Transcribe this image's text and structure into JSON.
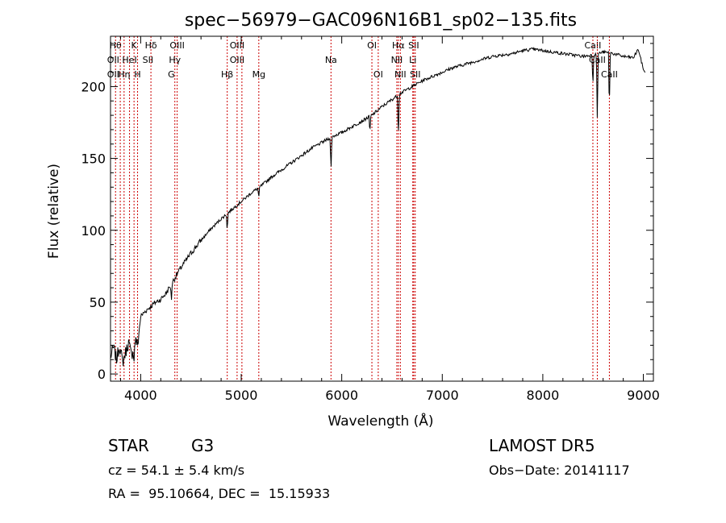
{
  "chart_data": {
    "type": "line",
    "title": "spec−56979−GAC096N16B1_sp02−135.fits",
    "xlabel": "Wavelength (Å)",
    "ylabel": "Flux (relative)",
    "xlim": [
      3700,
      9100
    ],
    "ylim": [
      -5,
      235
    ],
    "x_ticks": [
      4000,
      5000,
      6000,
      7000,
      8000,
      9000
    ],
    "y_ticks": [
      0,
      50,
      100,
      150,
      200
    ],
    "grid": false,
    "line_color": "#000000",
    "marker_color": "#cc0000",
    "series": [
      {
        "x": [
          3700,
          3730,
          3760,
          3790,
          3820,
          3850,
          3880,
          3910,
          3940,
          3970,
          4000,
          4050,
          4100,
          4150,
          4200,
          4250,
          4300,
          4350,
          4400,
          4500,
          4600,
          4700,
          4800,
          4900,
          5000,
          5100,
          5200,
          5300,
          5400,
          5500,
          5600,
          5700,
          5800,
          5900,
          6000,
          6100,
          6200,
          6300,
          6400,
          6500,
          6600,
          6700,
          6800,
          6900,
          7000,
          7100,
          7200,
          7300,
          7400,
          7500,
          7600,
          7700,
          7800,
          7900,
          8000,
          8100,
          8200,
          8300,
          8400,
          8500,
          8600,
          8700,
          8800,
          8900,
          8950,
          9000,
          9020
        ],
        "y": [
          12,
          18,
          10,
          20,
          8,
          15,
          22,
          12,
          25,
          20,
          40,
          44,
          47,
          50,
          52,
          56,
          62,
          68,
          74,
          84,
          93,
          101,
          108,
          114,
          120,
          126,
          131,
          137,
          142,
          147,
          152,
          157,
          161,
          165,
          168,
          172,
          176,
          180,
          186,
          191,
          196,
          200,
          204,
          207,
          210,
          213,
          215,
          217,
          219,
          221,
          222,
          223,
          225,
          226,
          225,
          224,
          223,
          222,
          221,
          222,
          224,
          223,
          221,
          220,
          226,
          212,
          210
        ]
      }
    ],
    "lines": [
      {
        "wavelength": 3750,
        "label": "Hθ",
        "row": 0
      },
      {
        "wavelength": 3797,
        "label": "",
        "row": 0
      },
      {
        "wavelength": 3835,
        "label": "",
        "row": 0
      },
      {
        "wavelength": 3889,
        "label": "",
        "row": 0
      },
      {
        "wavelength": 3934,
        "label": "K",
        "row": 0
      },
      {
        "wavelength": 3969,
        "label": "",
        "row": 0
      },
      {
        "wavelength": 4102,
        "label": "Hδ",
        "row": 0
      },
      {
        "wavelength": 4340,
        "label": "",
        "row": 0
      },
      {
        "wavelength": 4363,
        "label": "OIII",
        "row": 0
      },
      {
        "wavelength": 4861,
        "label": "",
        "row": 0
      },
      {
        "wavelength": 4959,
        "label": "OIII",
        "row": 0
      },
      {
        "wavelength": 5007,
        "label": "",
        "row": 0
      },
      {
        "wavelength": 5175,
        "label": "",
        "row": 0
      },
      {
        "wavelength": 5893,
        "label": "",
        "row": 0
      },
      {
        "wavelength": 6300,
        "label": "OI",
        "row": 0
      },
      {
        "wavelength": 6363,
        "label": "",
        "row": 0
      },
      {
        "wavelength": 6548,
        "label": "",
        "row": 0
      },
      {
        "wavelength": 6563,
        "label": "Hα",
        "row": 0
      },
      {
        "wavelength": 6583,
        "label": "",
        "row": 0
      },
      {
        "wavelength": 6707,
        "label": "",
        "row": 0
      },
      {
        "wavelength": 6716,
        "label": "SII",
        "row": 0
      },
      {
        "wavelength": 6731,
        "label": "",
        "row": 0
      },
      {
        "wavelength": 8498,
        "label": "CaII",
        "row": 0
      },
      {
        "wavelength": 8542,
        "label": "",
        "row": 0
      },
      {
        "wavelength": 8662,
        "label": "",
        "row": 0
      },
      {
        "wavelength": 3727,
        "label": "OII",
        "row": 1
      },
      {
        "wavelength": 3889,
        "label": "HeI",
        "row": 1
      },
      {
        "wavelength": 4072,
        "label": "SII",
        "row": 1
      },
      {
        "wavelength": 4340,
        "label": "Hγ",
        "row": 1
      },
      {
        "wavelength": 4959,
        "label": "OIII",
        "row": 1
      },
      {
        "wavelength": 5893,
        "label": "Na",
        "row": 1
      },
      {
        "wavelength": 6548,
        "label": "NII",
        "row": 1
      },
      {
        "wavelength": 6707,
        "label": "Li",
        "row": 1
      },
      {
        "wavelength": 8542,
        "label": "CaII",
        "row": 1
      },
      {
        "wavelength": 3727,
        "label": "OII",
        "row": 2
      },
      {
        "wavelength": 3835,
        "label": "Hη",
        "row": 2
      },
      {
        "wavelength": 3969,
        "label": "H",
        "row": 2
      },
      {
        "wavelength": 4305,
        "label": "G",
        "row": 2
      },
      {
        "wavelength": 4861,
        "label": "Hβ",
        "row": 2
      },
      {
        "wavelength": 5175,
        "label": "Mg",
        "row": 2
      },
      {
        "wavelength": 6363,
        "label": "OI",
        "row": 2
      },
      {
        "wavelength": 6583,
        "label": "NII",
        "row": 2
      },
      {
        "wavelength": 6731,
        "label": "SII",
        "row": 2
      },
      {
        "wavelength": 8662,
        "label": "CaII",
        "row": 2
      }
    ]
  },
  "info": {
    "object_class": "STAR",
    "subclass": "G3",
    "cz": "cz = 54.1 ± 5.4 km/s",
    "coords": "RA =  95.10664, DEC =  15.15933",
    "survey": "LAMOST DR5",
    "obs_date": "Obs−Date: 20141117"
  }
}
